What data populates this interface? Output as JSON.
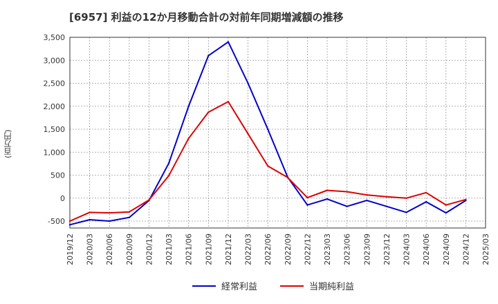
{
  "chart_data": {
    "type": "line",
    "title": "[6957]  利益の12か月移動合計の対前年同期増減額の推移",
    "ylabel": "(百万円)",
    "xlabel": "",
    "ylim": [
      -650,
      3500
    ],
    "yticks": [
      -500,
      0,
      500,
      1000,
      1500,
      2000,
      2500,
      3000,
      3500
    ],
    "ytick_labels": [
      "-500",
      "0",
      "500",
      "1,000",
      "1,500",
      "2,000",
      "2,500",
      "3,000",
      "3,500"
    ],
    "x": [
      "2019/12",
      "2020/03",
      "2020/06",
      "2020/09",
      "2020/12",
      "2021/03",
      "2021/06",
      "2021/09",
      "2021/12",
      "2022/03",
      "2022/06",
      "2022/09",
      "2022/12",
      "2023/03",
      "2023/06",
      "2023/09",
      "2023/12",
      "2024/03",
      "2024/06",
      "2024/09",
      "2024/12",
      "2025/03"
    ],
    "grid": true,
    "legend_position": "bottom",
    "series": [
      {
        "name": "経常利益",
        "color": "#0000cc",
        "values": [
          -580,
          -470,
          -500,
          -420,
          -50,
          760,
          2000,
          3100,
          3400,
          2500,
          1500,
          460,
          -150,
          -20,
          -180,
          -50,
          -180,
          -310,
          -80,
          -320,
          -50,
          null
        ]
      },
      {
        "name": "当期純利益",
        "color": "#dd0000",
        "values": [
          -500,
          -310,
          -320,
          -300,
          -40,
          490,
          1300,
          1870,
          2100,
          1400,
          700,
          450,
          10,
          170,
          140,
          70,
          30,
          0,
          120,
          -150,
          -30,
          null
        ]
      }
    ]
  }
}
